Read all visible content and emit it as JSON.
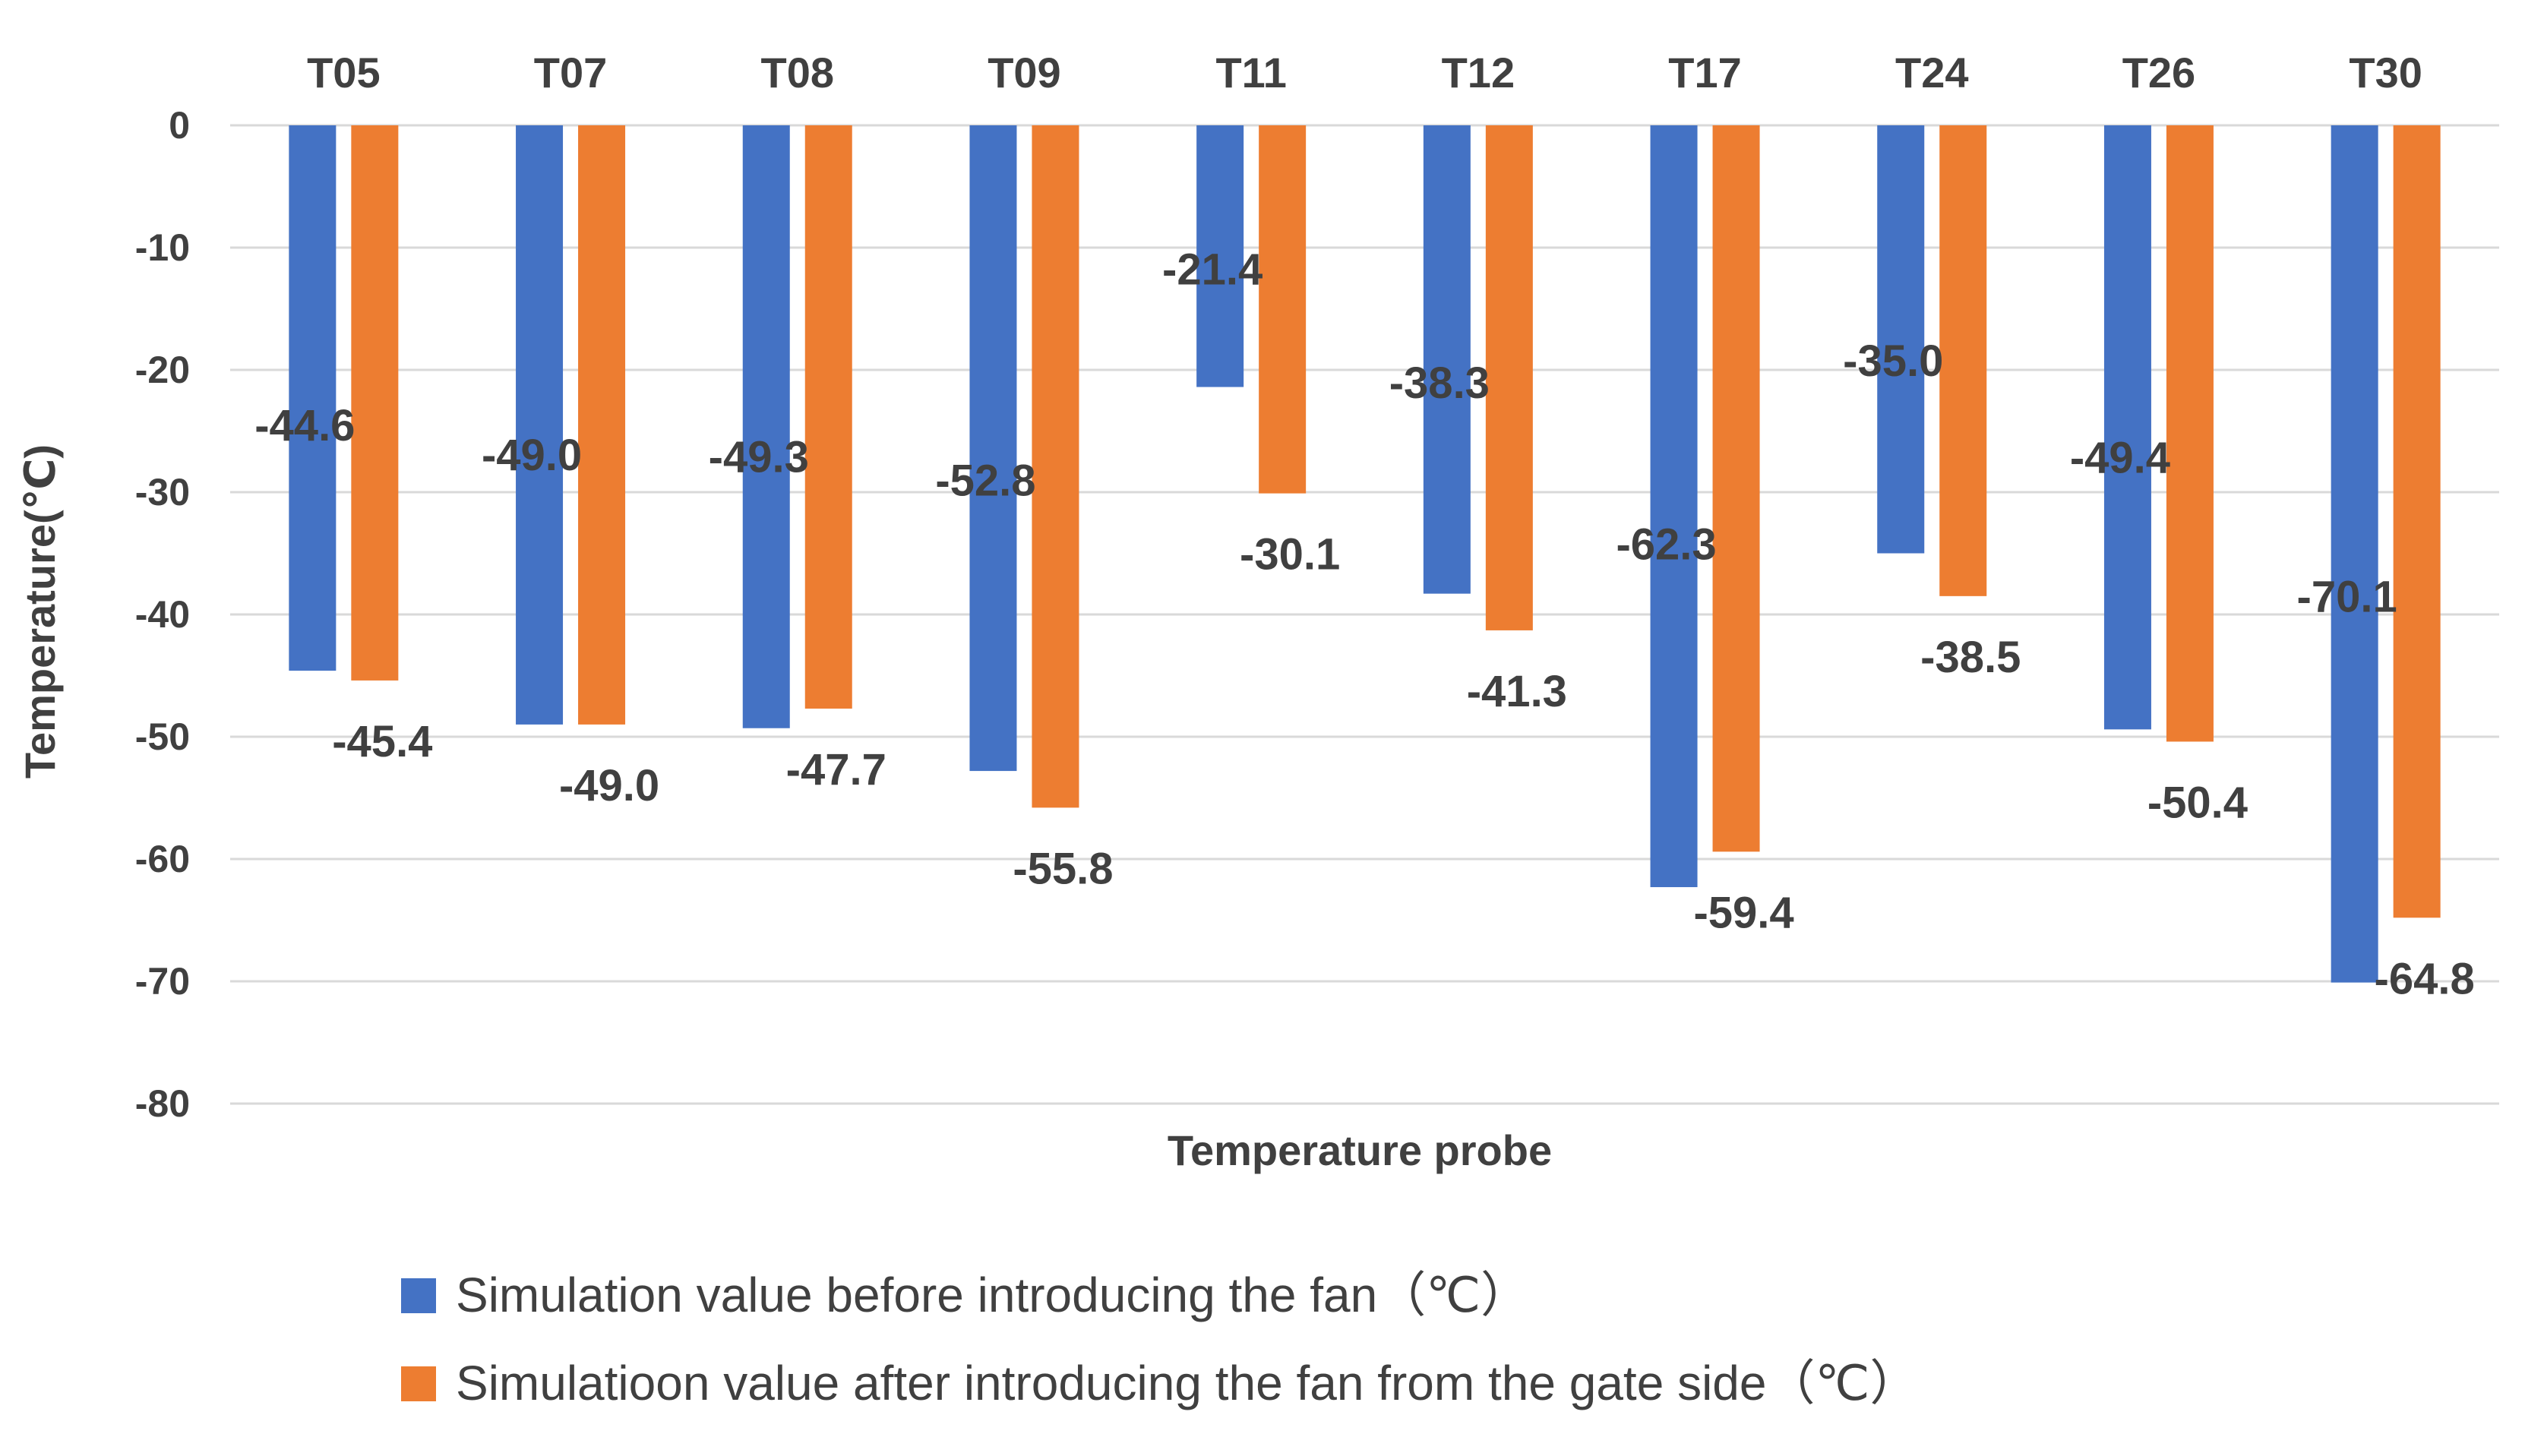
{
  "chart_data": {
    "type": "bar",
    "categories": [
      "T05",
      "T07",
      "T08",
      "T09",
      "T11",
      "T12",
      "T17",
      "T24",
      "T26",
      "T30"
    ],
    "series": [
      {
        "name": "Simulation value before introducing the fan（℃）",
        "color": "#4472C4",
        "values": [
          -44.6,
          -49.0,
          -49.3,
          -52.8,
          -21.4,
          -38.3,
          -62.3,
          -35.0,
          -49.4,
          -70.1
        ]
      },
      {
        "name": "Simulatioon value after introducing the fan from the gate side（℃）",
        "color": "#ED7D31",
        "values": [
          -45.4,
          -49.0,
          -47.7,
          -55.8,
          -30.1,
          -41.3,
          -59.4,
          -38.5,
          -50.4,
          -64.8
        ]
      }
    ],
    "xlabel": "Temperature probe",
    "ylabel": "Temperature(℃)",
    "ylim": [
      -80,
      0
    ],
    "yticks": [
      0,
      -10,
      -20,
      -30,
      -40,
      -50,
      -60,
      -70,
      -80
    ],
    "category_axis_position": "top",
    "grid": true,
    "legend_position": "bottom",
    "gridline_color": "#D9D9D9",
    "text_color": "#404040"
  }
}
